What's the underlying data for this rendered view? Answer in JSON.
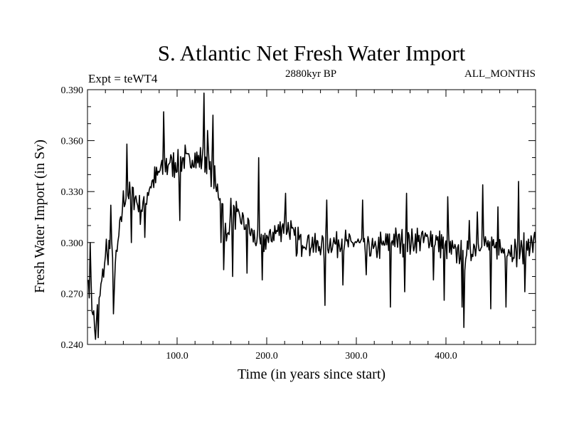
{
  "chart_data": {
    "type": "line",
    "title": "S. Atlantic Net Fresh Water Import",
    "subtitle_left": "Expt = teWT4",
    "subtitle_center": "2880kyr BP",
    "subtitle_right": "ALL_MONTHS",
    "xlabel": "Time (in years since start)",
    "ylabel": "Fresh Water Import (in Sv)",
    "xlim": [
      0,
      500
    ],
    "ylim": [
      0.24,
      0.39
    ],
    "x_ticks": [
      100,
      200,
      300,
      400
    ],
    "x_tick_labels": [
      "100.0",
      "200.0",
      "300.0",
      "400.0"
    ],
    "y_ticks": [
      0.24,
      0.27,
      0.3,
      0.33,
      0.36,
      0.39
    ],
    "y_tick_labels": [
      "0.240",
      "0.270",
      "0.300",
      "0.330",
      "0.360",
      "0.390"
    ],
    "grid": false,
    "series": [
      {
        "name": "Fresh Water Import",
        "x_start": 1,
        "x_step": 1,
        "noise_amplitude": 0.012,
        "seed": 7,
        "anchors": [
          [
            0,
            0.278
          ],
          [
            4,
            0.27
          ],
          [
            8,
            0.25
          ],
          [
            12,
            0.262
          ],
          [
            18,
            0.285
          ],
          [
            22,
            0.292
          ],
          [
            26,
            0.3
          ],
          [
            30,
            0.28
          ],
          [
            34,
            0.3
          ],
          [
            40,
            0.325
          ],
          [
            50,
            0.33
          ],
          [
            60,
            0.318
          ],
          [
            70,
            0.333
          ],
          [
            80,
            0.342
          ],
          [
            90,
            0.348
          ],
          [
            100,
            0.345
          ],
          [
            110,
            0.35
          ],
          [
            120,
            0.348
          ],
          [
            130,
            0.35
          ],
          [
            140,
            0.34
          ],
          [
            150,
            0.325
          ],
          [
            155,
            0.3
          ],
          [
            160,
            0.318
          ],
          [
            170,
            0.315
          ],
          [
            180,
            0.308
          ],
          [
            190,
            0.3
          ],
          [
            200,
            0.302
          ],
          [
            220,
            0.31
          ],
          [
            240,
            0.3
          ],
          [
            260,
            0.298
          ],
          [
            280,
            0.3
          ],
          [
            300,
            0.3
          ],
          [
            320,
            0.296
          ],
          [
            340,
            0.302
          ],
          [
            360,
            0.3
          ],
          [
            380,
            0.303
          ],
          [
            400,
            0.298
          ],
          [
            420,
            0.292
          ],
          [
            440,
            0.3
          ],
          [
            460,
            0.296
          ],
          [
            480,
            0.294
          ],
          [
            500,
            0.3
          ]
        ],
        "events": [
          [
            1,
            0.278
          ],
          [
            3,
            0.3
          ],
          [
            9,
            0.243
          ],
          [
            12,
            0.244
          ],
          [
            21,
            0.302
          ],
          [
            26,
            0.322
          ],
          [
            29,
            0.258
          ],
          [
            44,
            0.358
          ],
          [
            49,
            0.3
          ],
          [
            64,
            0.303
          ],
          [
            85,
            0.377
          ],
          [
            89,
            0.34
          ],
          [
            103,
            0.313
          ],
          [
            130,
            0.388
          ],
          [
            134,
            0.366
          ],
          [
            140,
            0.375
          ],
          [
            144,
            0.33
          ],
          [
            147,
            0.325
          ],
          [
            149,
            0.3
          ],
          [
            152,
            0.284
          ],
          [
            162,
            0.28
          ],
          [
            178,
            0.282
          ],
          [
            180,
            0.313
          ],
          [
            191,
            0.35
          ],
          [
            195,
            0.278
          ],
          [
            202,
            0.3
          ],
          [
            221,
            0.329
          ],
          [
            233,
            0.292
          ],
          [
            245,
            0.3
          ],
          [
            265,
            0.263
          ],
          [
            267,
            0.325
          ],
          [
            285,
            0.275
          ],
          [
            307,
            0.325
          ],
          [
            311,
            0.281
          ],
          [
            338,
            0.262
          ],
          [
            354,
            0.271
          ],
          [
            356,
            0.329
          ],
          [
            386,
            0.278
          ],
          [
            398,
            0.266
          ],
          [
            402,
            0.327
          ],
          [
            413,
            0.297
          ],
          [
            418,
            0.262
          ],
          [
            420,
            0.25
          ],
          [
            426,
            0.313
          ],
          [
            435,
            0.318
          ],
          [
            441,
            0.334
          ],
          [
            450,
            0.261
          ],
          [
            458,
            0.321
          ],
          [
            467,
            0.262
          ],
          [
            481,
            0.336
          ],
          [
            488,
            0.271
          ],
          [
            492,
            0.302
          ],
          [
            498,
            0.303
          ],
          [
            500,
            0.3
          ]
        ]
      }
    ]
  }
}
